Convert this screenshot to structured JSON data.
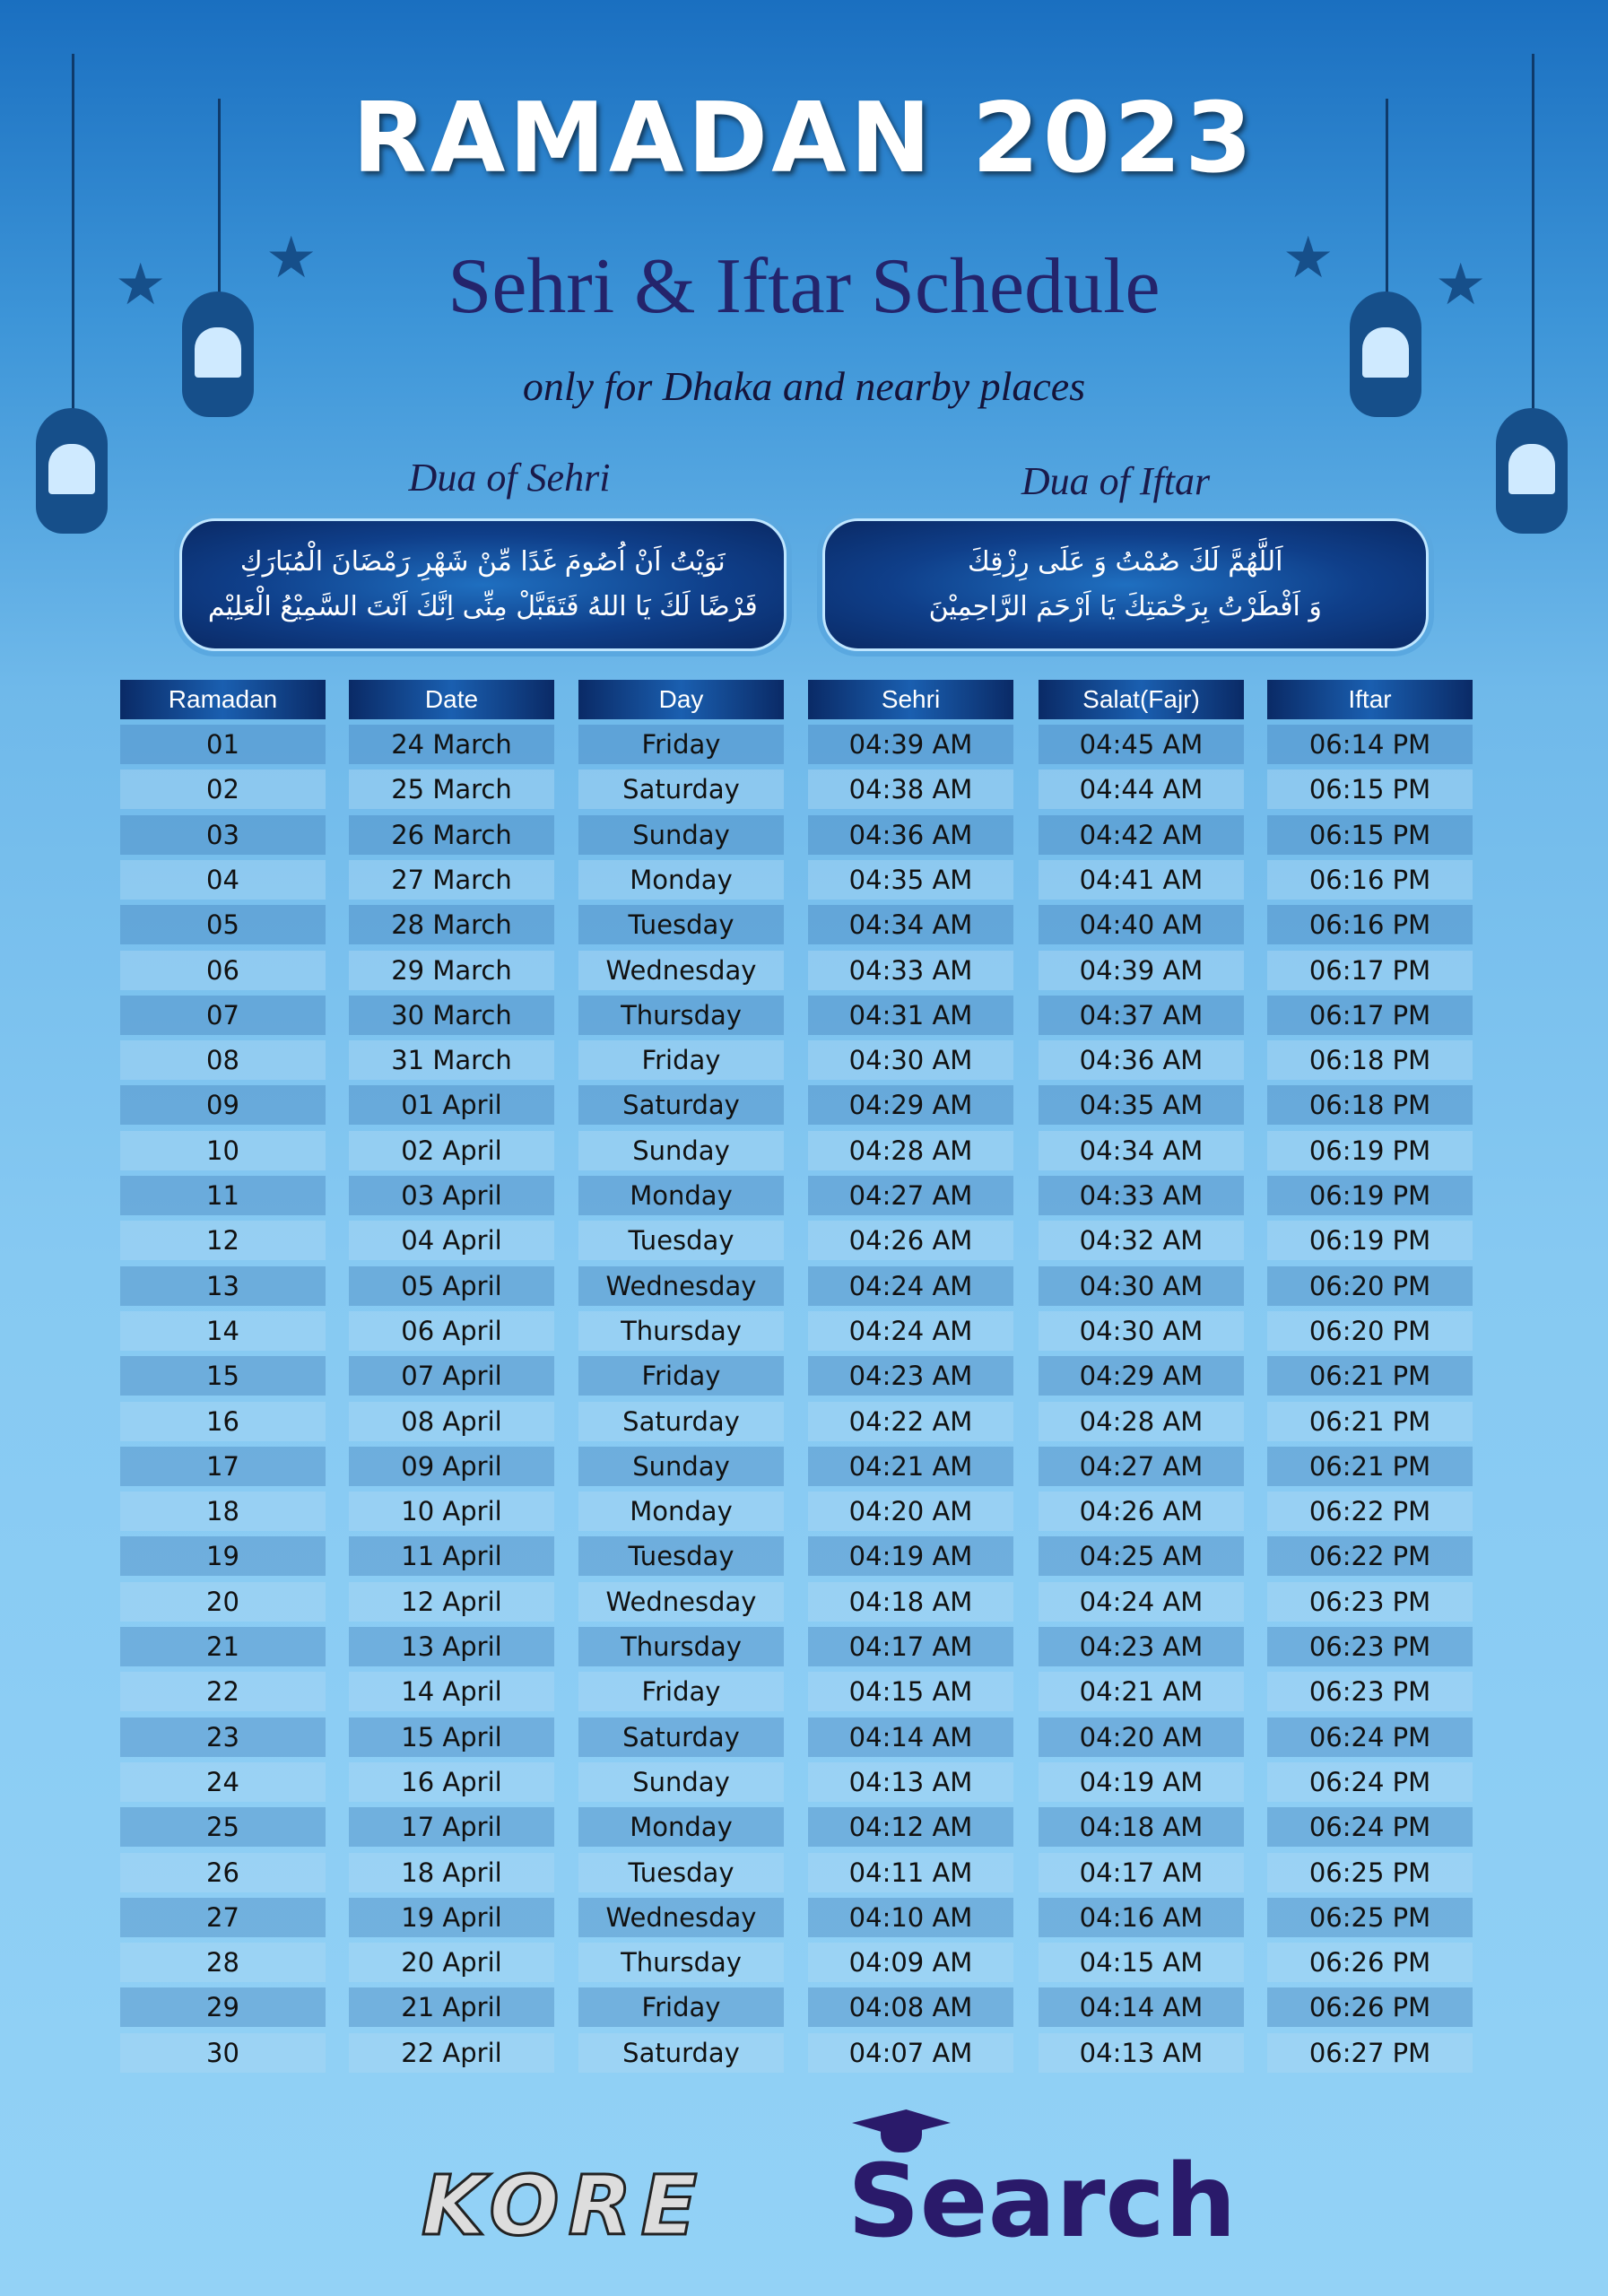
{
  "header": {
    "title": "RAMADAN 2023",
    "subtitle": "Sehri & Iftar Schedule",
    "tagline": "only for Dhaka and nearby places"
  },
  "duas": [
    {
      "label": "Dua of Sehri",
      "lines": [
        "نَوَيْتُ اَنْ اُصُومَ غَدًا مِّنْ شَهْرِ رَمْضَانَ الْمُبَارَكِ",
        "فَرْضًا لَكَ يَا اللهُ فَتَقَبَّلْ مِنِّى اِنَّكَ اَنْتَ السَّمِيْعُ الْعَلِيْم"
      ]
    },
    {
      "label": "Dua of Iftar",
      "lines": [
        "اَللَّهُمَّ لَكَ صُمْتُ وَ عَلَى رِزْقِكَ",
        "وَ اَفْطَرْتُ بِرَحْمَتِكَ يَا اَرْحَمَ الرَّاحِمِيْنَ"
      ]
    }
  ],
  "table": {
    "headers": [
      "Ramadan",
      "Date",
      "Day",
      "Sehri",
      "Salat(Fajr)",
      "Iftar"
    ],
    "rows": [
      [
        "01",
        "24 March",
        "Friday",
        "04:39 AM",
        "04:45 AM",
        "06:14 PM"
      ],
      [
        "02",
        "25 March",
        "Saturday",
        "04:38 AM",
        "04:44 AM",
        "06:15 PM"
      ],
      [
        "03",
        "26 March",
        "Sunday",
        "04:36 AM",
        "04:42 AM",
        "06:15 PM"
      ],
      [
        "04",
        "27 March",
        "Monday",
        "04:35 AM",
        "04:41 AM",
        "06:16 PM"
      ],
      [
        "05",
        "28 March",
        "Tuesday",
        "04:34 AM",
        "04:40 AM",
        "06:16 PM"
      ],
      [
        "06",
        "29 March",
        "Wednesday",
        "04:33 AM",
        "04:39 AM",
        "06:17 PM"
      ],
      [
        "07",
        "30 March",
        "Thursday",
        "04:31 AM",
        "04:37 AM",
        "06:17 PM"
      ],
      [
        "08",
        "31 March",
        "Friday",
        "04:30 AM",
        "04:36 AM",
        "06:18 PM"
      ],
      [
        "09",
        "01 April",
        "Saturday",
        "04:29 AM",
        "04:35 AM",
        "06:18 PM"
      ],
      [
        "10",
        "02 April",
        "Sunday",
        "04:28 AM",
        "04:34 AM",
        "06:19 PM"
      ],
      [
        "11",
        "03 April",
        "Monday",
        "04:27 AM",
        "04:33 AM",
        "06:19 PM"
      ],
      [
        "12",
        "04 April",
        "Tuesday",
        "04:26 AM",
        "04:32 AM",
        "06:19 PM"
      ],
      [
        "13",
        "05 April",
        "Wednesday",
        "04:24 AM",
        "04:30 AM",
        "06:20 PM"
      ],
      [
        "14",
        "06 April",
        "Thursday",
        "04:24 AM",
        "04:30 AM",
        "06:20 PM"
      ],
      [
        "15",
        "07 April",
        "Friday",
        "04:23 AM",
        "04:29 AM",
        "06:21 PM"
      ],
      [
        "16",
        "08 April",
        "Saturday",
        "04:22 AM",
        "04:28 AM",
        "06:21 PM"
      ],
      [
        "17",
        "09 April",
        "Sunday",
        "04:21 AM",
        "04:27 AM",
        "06:21 PM"
      ],
      [
        "18",
        "10 April",
        "Monday",
        "04:20 AM",
        "04:26 AM",
        "06:22 PM"
      ],
      [
        "19",
        "11 April",
        "Tuesday",
        "04:19 AM",
        "04:25 AM",
        "06:22 PM"
      ],
      [
        "20",
        "12 April",
        "Wednesday",
        "04:18 AM",
        "04:24 AM",
        "06:23 PM"
      ],
      [
        "21",
        "13 April",
        "Thursday",
        "04:17 AM",
        "04:23 AM",
        "06:23 PM"
      ],
      [
        "22",
        "14 April",
        "Friday",
        "04:15 AM",
        "04:21 AM",
        "06:23 PM"
      ],
      [
        "23",
        "15 April",
        "Saturday",
        "04:14 AM",
        "04:20 AM",
        "06:24 PM"
      ],
      [
        "24",
        "16 April",
        "Sunday",
        "04:13 AM",
        "04:19 AM",
        "06:24 PM"
      ],
      [
        "25",
        "17 April",
        "Monday",
        "04:12 AM",
        "04:18 AM",
        "06:24 PM"
      ],
      [
        "26",
        "18 April",
        "Tuesday",
        "04:11 AM",
        "04:17 AM",
        "06:25 PM"
      ],
      [
        "27",
        "19 April",
        "Wednesday",
        "04:10 AM",
        "04:16 AM",
        "06:25 PM"
      ],
      [
        "28",
        "20 April",
        "Thursday",
        "04:09 AM",
        "04:15 AM",
        "06:26 PM"
      ],
      [
        "29",
        "21 April",
        "Friday",
        "04:08 AM",
        "04:14 AM",
        "06:26 PM"
      ],
      [
        "30",
        "22 April",
        "Saturday",
        "04:07 AM",
        "04:13 AM",
        "06:27 PM"
      ]
    ]
  },
  "footer": {
    "logos": [
      "KORE",
      "Search"
    ]
  },
  "colors": {
    "header_bg": "#0a2a66",
    "title_text": "#24246b",
    "brand": "#2a1a6a"
  }
}
